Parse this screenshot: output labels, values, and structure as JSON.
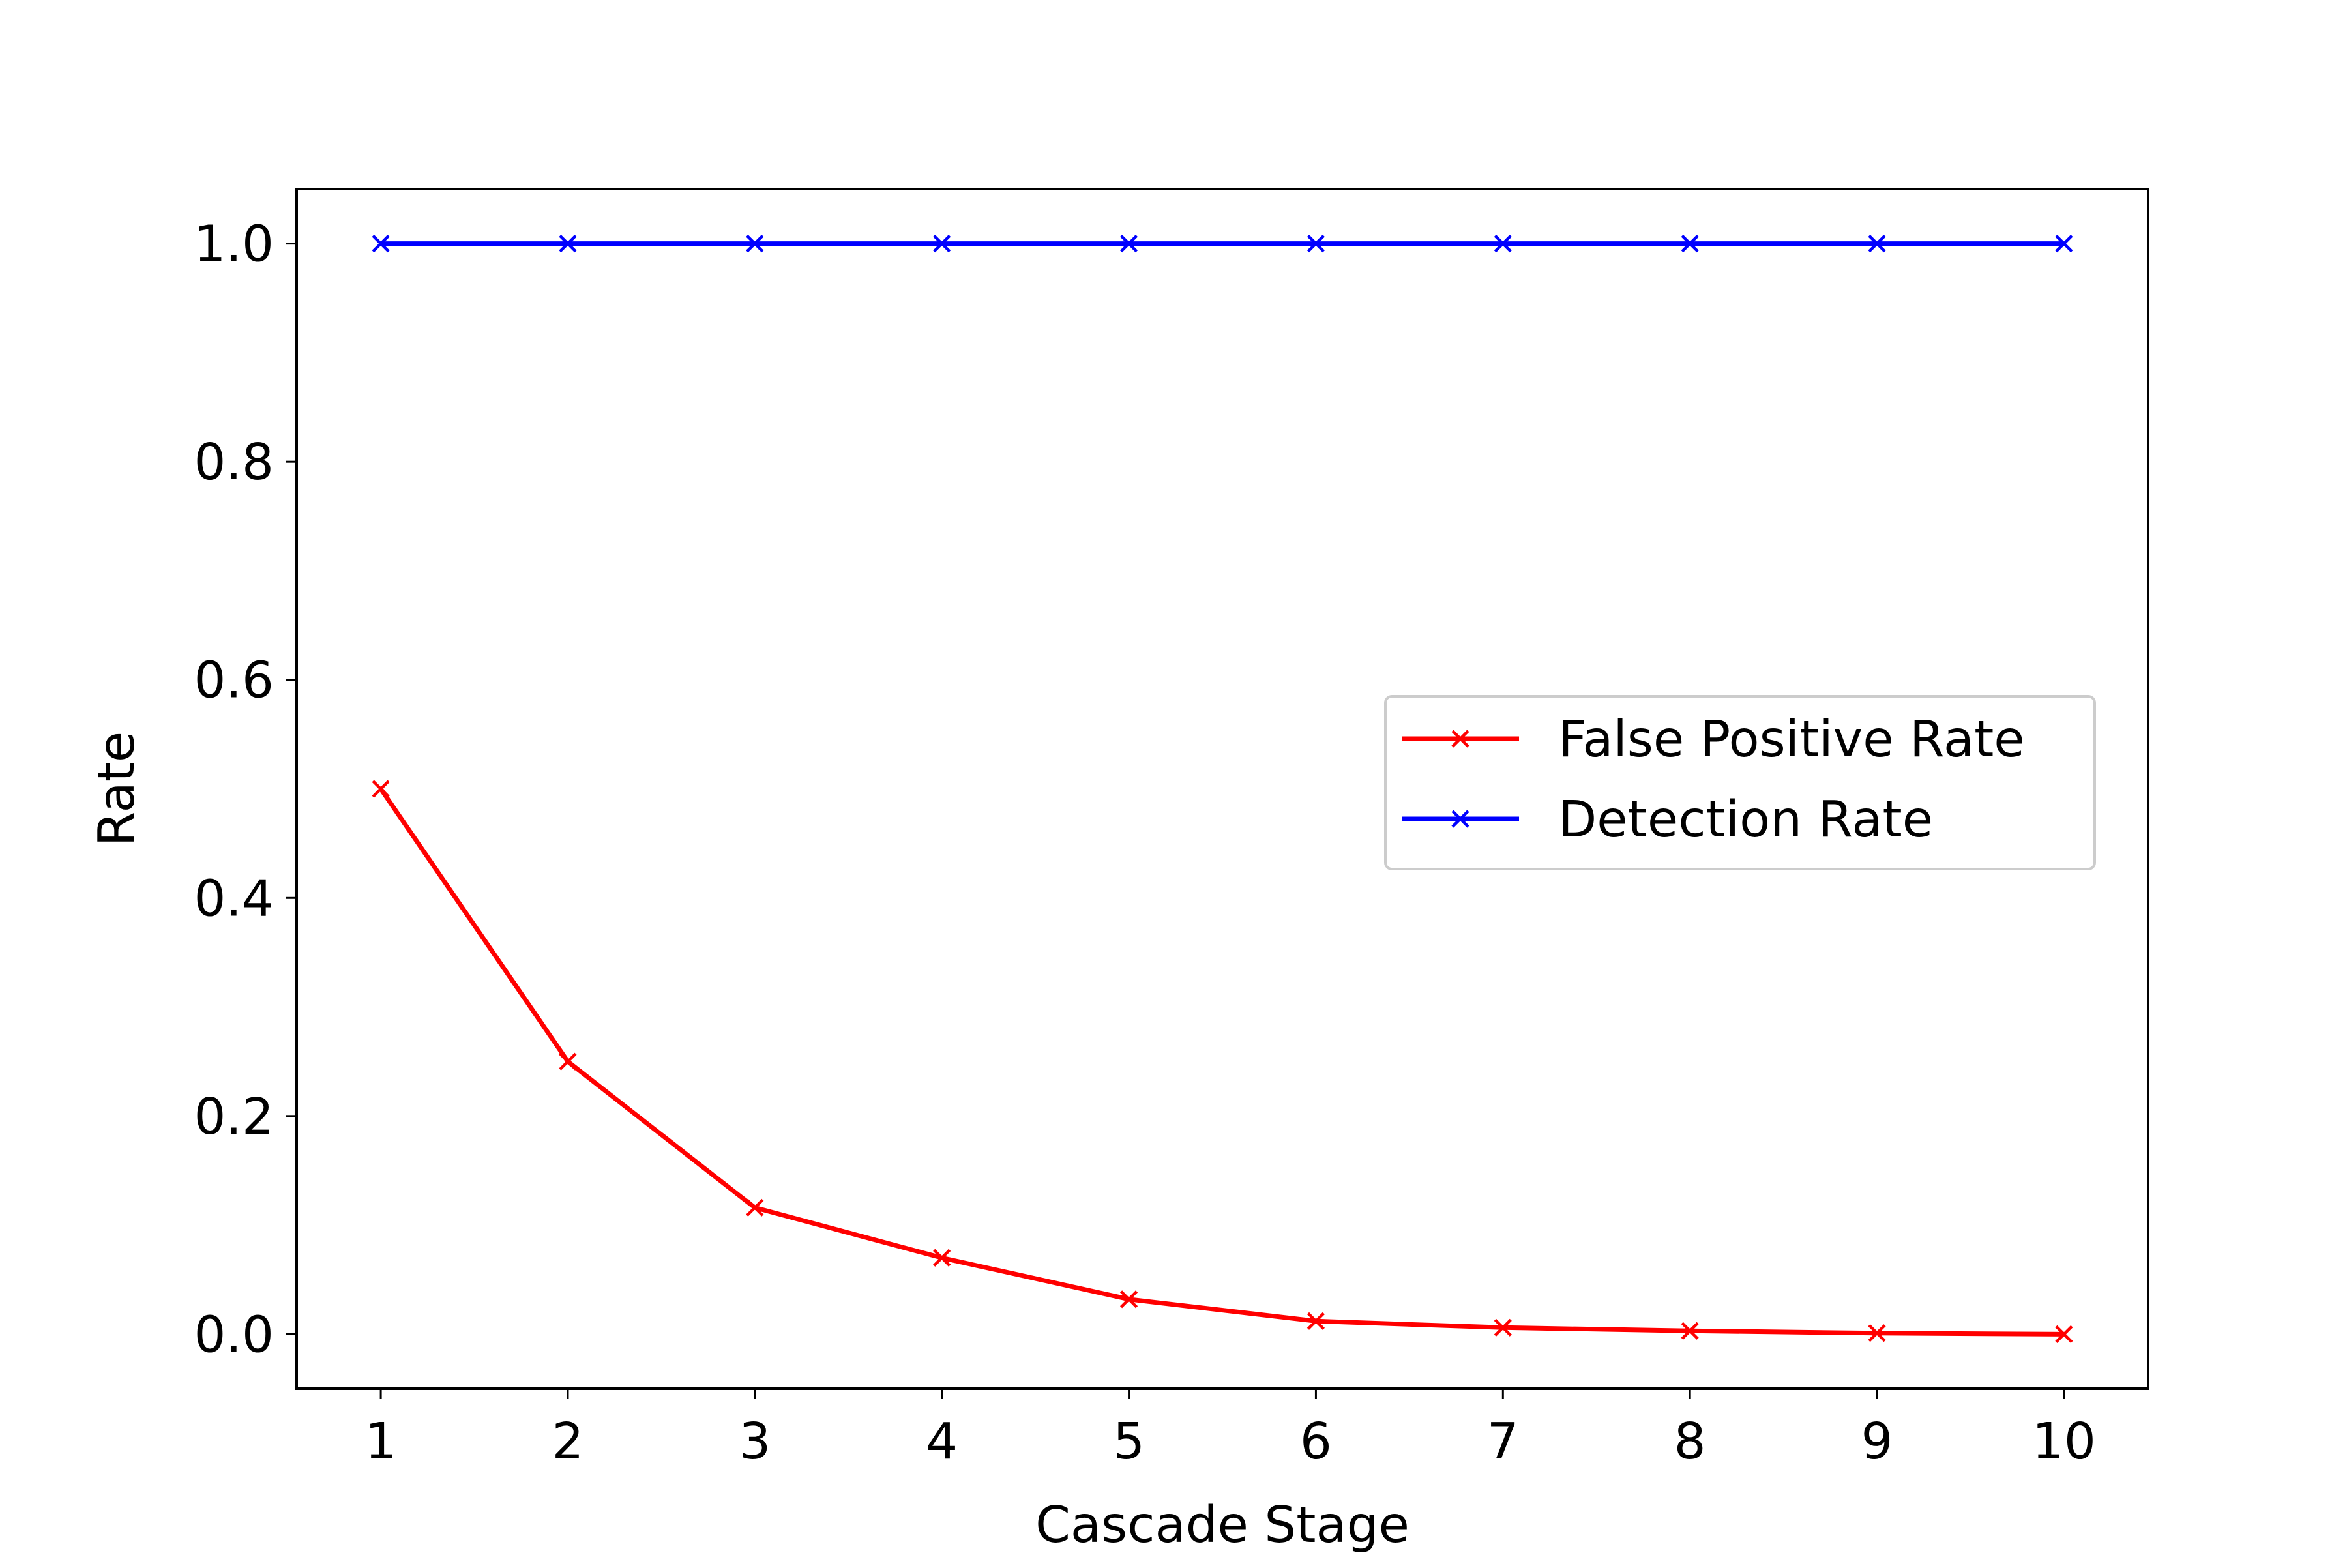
{
  "chart_data": {
    "type": "line",
    "title": "",
    "xlabel": "Cascade Stage",
    "ylabel": "Rate",
    "x": [
      1,
      2,
      3,
      4,
      5,
      6,
      7,
      8,
      9,
      10
    ],
    "xticks": [
      "1",
      "2",
      "3",
      "4",
      "5",
      "6",
      "7",
      "8",
      "9",
      "10"
    ],
    "yticks": [
      "0.0",
      "0.2",
      "0.4",
      "0.6",
      "0.8",
      "1.0"
    ],
    "xlim": [
      0.55,
      10.45
    ],
    "ylim": [
      -0.05,
      1.05
    ],
    "grid": false,
    "legend_position": "center-right",
    "marker": "x",
    "series": [
      {
        "name": "False Positive Rate",
        "color": "#ff0000",
        "values": [
          0.5,
          0.25,
          0.116,
          0.07,
          0.032,
          0.012,
          0.006,
          0.003,
          0.001,
          0.0
        ]
      },
      {
        "name": "Detection Rate",
        "color": "#0000ff",
        "values": [
          1.0,
          1.0,
          1.0,
          1.0,
          1.0,
          1.0,
          1.0,
          1.0,
          1.0,
          1.0
        ]
      }
    ]
  }
}
